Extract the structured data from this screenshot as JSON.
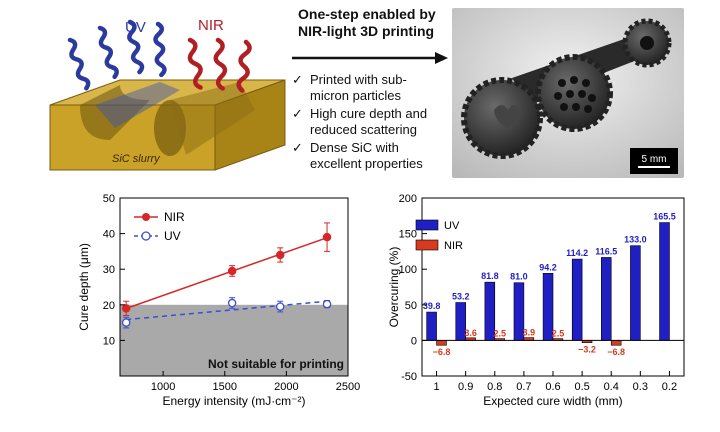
{
  "schematic": {
    "uv_label": "UV",
    "nir_label": "NIR",
    "slurry_label": "SiC slurry",
    "colors": {
      "uv": "#2b3a9e",
      "nir": "#b01f24",
      "slurry": "#c9a227"
    }
  },
  "headline": {
    "line1": "One-step enabled by",
    "line2": "NIR-light 3D printing"
  },
  "bullets": [
    {
      "line1": "Printed with sub-",
      "line2": "micron particles"
    },
    {
      "line1": "High cure depth and",
      "line2": "reduced scattering"
    },
    {
      "line1": "Dense SiC with",
      "line2": "excellent properties"
    }
  ],
  "photo": {
    "scale_bar": "5 mm"
  },
  "chart_data": [
    {
      "type": "line",
      "title": "",
      "xlabel": "Energy intensity (mJ·cm⁻²)",
      "ylabel": "Cure depth (μm)",
      "xlim": [
        650,
        2500
      ],
      "ylim": [
        0,
        50
      ],
      "xticks": [
        1000,
        1500,
        2000,
        2500
      ],
      "yticks": [
        10,
        20,
        30,
        40,
        50
      ],
      "legend": "top-left",
      "shaded_region": {
        "y_max": 20,
        "label": "Not suitable for printing"
      },
      "series": [
        {
          "name": "NIR",
          "color": "#d62728",
          "marker": "filled-circle",
          "line": "solid",
          "x": [
            700,
            1560,
            1950,
            2330
          ],
          "y": [
            19,
            29.5,
            34,
            39
          ],
          "err": [
            2,
            1.5,
            2,
            4
          ]
        },
        {
          "name": "UV",
          "color": "#3b4fd1",
          "marker": "open-circle",
          "line": "dashed",
          "x": [
            700,
            1560,
            1950,
            2330
          ],
          "y": [
            15,
            20.5,
            19.5,
            20.2
          ],
          "err": [
            1.5,
            1.5,
            1.5,
            1
          ]
        }
      ]
    },
    {
      "type": "bar",
      "title": "",
      "xlabel": "Expected cure width (mm)",
      "ylabel": "Overcuring (%)",
      "ylim": [
        -50,
        200
      ],
      "yticks": [
        -50,
        0,
        50,
        100,
        150,
        200
      ],
      "legend": "top-left",
      "categories": [
        "1",
        "0.9",
        "0.8",
        "0.7",
        "0.6",
        "0.5",
        "0.4",
        "0.3",
        "0.2"
      ],
      "series": [
        {
          "name": "UV",
          "color": "#1f1fc4",
          "values": [
            39.8,
            53.2,
            81.8,
            81.0,
            94.2,
            114.2,
            116.5,
            133.0,
            165.5
          ],
          "labels": [
            "39.8",
            "53.2",
            "81.8",
            "81.0",
            "94.2",
            "114.2",
            "116.5",
            "133.0",
            "165.5"
          ]
        },
        {
          "name": "NIR",
          "color": "#d63a1f",
          "values": [
            -6.8,
            3.6,
            2.5,
            3.9,
            2.5,
            -3.2,
            -6.8,
            null,
            null
          ],
          "labels": [
            "−6.8",
            "3.6",
            "2.5",
            "3.9",
            "2.5",
            "−3.2",
            "−6.8",
            "",
            ""
          ]
        }
      ]
    }
  ]
}
